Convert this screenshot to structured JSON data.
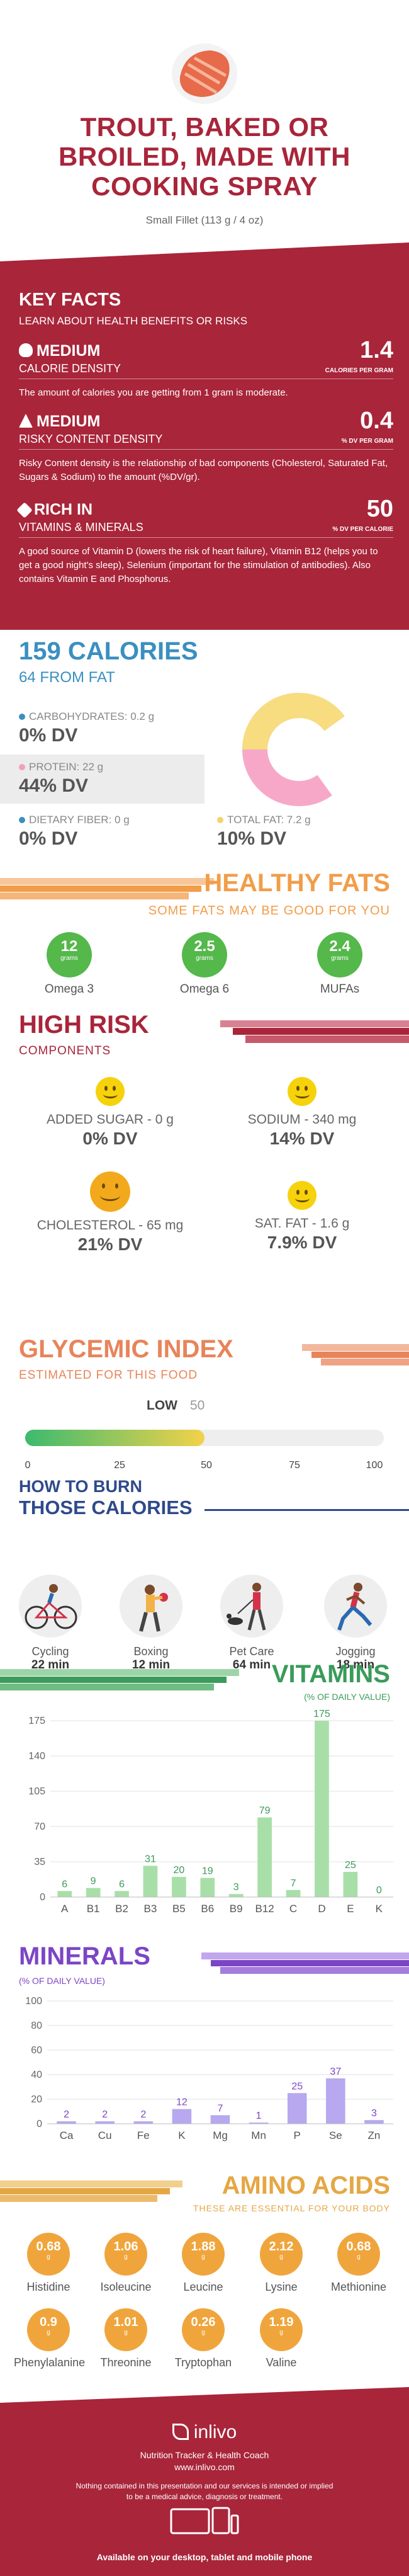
{
  "hero": {
    "title_lines": [
      "TROUT, BAKED OR",
      "BROILED, MADE WITH",
      "COOKING SPRAY"
    ],
    "subtitle": "Small Fillet (113 g / 4 oz)"
  },
  "key_facts": {
    "title": "KEY FACTS",
    "subtitle": "LEARN ABOUT HEALTH BENEFITS OR RISKS",
    "items": [
      {
        "level": "MEDIUM",
        "name": "CALORIE DENSITY",
        "value": "1.4",
        "unit": "CALORIES PER GRAM",
        "desc": "The amount of calories you are getting from 1 gram is moderate."
      },
      {
        "level": "MEDIUM",
        "name": "RISKY CONTENT DENSITY",
        "value": "0.4",
        "unit": "% DV PER GRAM",
        "desc": "Risky Content density is the relationship of bad components (Cholesterol, Saturated Fat, Sugars & Sodium) to the amount (%DV/gr)."
      },
      {
        "level": "RICH  IN",
        "name": "VITAMINS & MINERALS",
        "value": "50",
        "unit": "% DV PER CALORIE",
        "desc": "A good source of Vitamin D (lowers the risk of heart failure), Vitamin B12 (helps you to get a good night's sleep), Selenium (important for the stimulation of antibodies). Also contains Vitamin E and Phosphorus."
      }
    ]
  },
  "calories": {
    "title": "159 CALORIES",
    "subtitle": "64 FROM FAT",
    "nutrients": [
      {
        "label": "CARBOHYDRATES: 0.2 g",
        "dv": "0% DV",
        "color": "#3a8fc0"
      },
      {
        "label": "PROTEIN: 22 g",
        "dv": "44% DV",
        "color": "#f0a0c0"
      },
      {
        "label": "DIETARY FIBER: 0 g",
        "dv": "0% DV",
        "color": "#3a8fc0"
      },
      {
        "label": "TOTAL FAT: 7.2 g",
        "dv": "10% DV",
        "color": "#f3d46c"
      }
    ],
    "donut": {
      "protein_fraction": 0.6,
      "fat_fraction": 0.4,
      "protein_color": "#f7a8c8",
      "fat_color": "#f7dc80"
    }
  },
  "healthy_fats": {
    "title": "HEALTHY FATS",
    "subtitle": "SOME FATS MAY BE GOOD FOR YOU",
    "items": [
      {
        "value": "12",
        "unit": "grams",
        "label": "Omega 3"
      },
      {
        "value": "2.5",
        "unit": "grams",
        "label": "Omega 6"
      },
      {
        "value": "2.4",
        "unit": "grams",
        "label": "MUFAs"
      }
    ]
  },
  "high_risk": {
    "title": "HIGH RISK",
    "subtitle": "COMPONENTS",
    "items": [
      {
        "label": "ADDED SUGAR - 0 g",
        "dv": "0% DV"
      },
      {
        "label": "SODIUM - 340 mg",
        "dv": "14% DV"
      },
      {
        "label": "CHOLESTEROL - 65 mg",
        "dv": "21% DV"
      },
      {
        "label": "SAT. FAT - 1.6 g",
        "dv": "7.9% DV"
      }
    ]
  },
  "glycemic": {
    "title": "GLYCEMIC INDEX",
    "subtitle": "ESTIMATED FOR THIS FOOD",
    "level": "LOW",
    "value": "50",
    "fill_fraction": 0.5,
    "ticks": [
      "0",
      "25",
      "50",
      "75",
      "100"
    ]
  },
  "burn": {
    "title_1": "HOW TO BURN",
    "title_2": "THOSE CALORIES",
    "items": [
      {
        "label": "Cycling",
        "minutes": "22 min",
        "icon": "cycling-icon"
      },
      {
        "label": "Boxing",
        "minutes": "12 min",
        "icon": "boxing-icon"
      },
      {
        "label": "Pet Care",
        "minutes": "64 min",
        "icon": "pet-care-icon"
      },
      {
        "label": "Jogging",
        "minutes": "18 min",
        "icon": "jogging-icon"
      }
    ]
  },
  "vitamins": {
    "title": "VITAMINS",
    "subtitle": "(% OF DAILY VALUE)"
  },
  "minerals": {
    "title": "MINERALS",
    "subtitle": "(% OF DAILY VALUE)"
  },
  "amino": {
    "title": "AMINO ACIDS",
    "subtitle": "THESE ARE ESSENTIAL FOR YOUR BODY",
    "items": [
      {
        "value": "0.68",
        "unit": "g",
        "label": "Histidine"
      },
      {
        "value": "1.06",
        "unit": "g",
        "label": "Isoleucine"
      },
      {
        "value": "1.88",
        "unit": "g",
        "label": "Leucine"
      },
      {
        "value": "2.12",
        "unit": "g",
        "label": "Lysine"
      },
      {
        "value": "0.68",
        "unit": "g",
        "label": "Methionine"
      },
      {
        "value": "0.9",
        "unit": "g",
        "label": "Phenylalanine"
      },
      {
        "value": "1.01",
        "unit": "g",
        "label": "Threonine"
      },
      {
        "value": "0.26",
        "unit": "g",
        "label": "Tryptophan"
      },
      {
        "value": "1.19",
        "unit": "g",
        "label": "Valine"
      }
    ]
  },
  "footer": {
    "brand": "inlivo",
    "tagline": "Nutrition Tracker & Health Coach",
    "url": "www.inlivo.com",
    "disclaimer_1": "Nothing contained in this presentation and our services is intended or implied",
    "disclaimer_2": "to be a medical advice, diagnosis or treatment.",
    "available": "Available on your desktop, tablet and mobile phone"
  },
  "colors": {
    "brand": "#a8253a",
    "blue": "#3a8fc0",
    "orange": "#f29d49",
    "green": "#3a9b5a",
    "purple": "#7c45c6",
    "amber": "#e5a744"
  },
  "chart_data": [
    {
      "type": "bar",
      "title": "VITAMINS",
      "ylabel": "(% OF DAILY VALUE)",
      "categories": [
        "A",
        "B1",
        "B2",
        "B3",
        "B5",
        "B6",
        "B9",
        "B12",
        "C",
        "D",
        "E",
        "K"
      ],
      "values": [
        6,
        9,
        6,
        31,
        20,
        19,
        3,
        79,
        7,
        175,
        25,
        0
      ],
      "yticks": [
        0,
        35,
        70,
        105,
        140,
        175
      ],
      "ylim": [
        0,
        175
      ],
      "color": "#a8dfa8",
      "label_color": "#3a9b5a"
    },
    {
      "type": "bar",
      "title": "MINERALS",
      "ylabel": "(% OF DAILY VALUE)",
      "categories": [
        "Ca",
        "Cu",
        "Fe",
        "K",
        "Mg",
        "Mn",
        "P",
        "Se",
        "Zn"
      ],
      "values": [
        2,
        2,
        2,
        12,
        7,
        1,
        25,
        37,
        3
      ],
      "yticks": [
        0,
        20,
        40,
        60,
        80,
        100
      ],
      "ylim": [
        0,
        100
      ],
      "color": "#b7a8f0",
      "label_color": "#7c45c6"
    }
  ]
}
